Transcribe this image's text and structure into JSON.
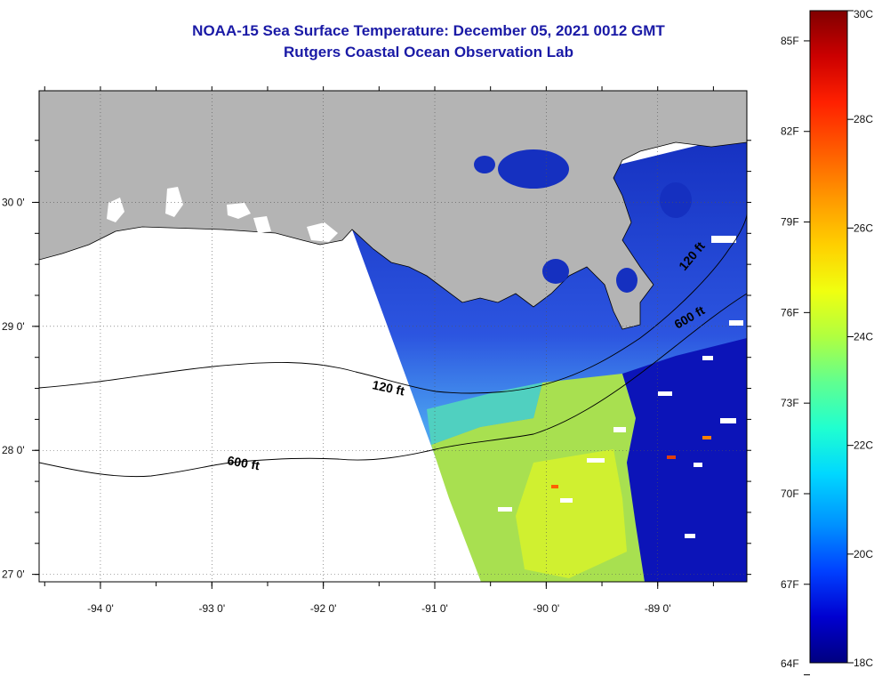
{
  "title": "NOAA-15 Sea Surface Temperature:  December 05, 2021 0012 GMT",
  "subtitle": "Rutgers Coastal Ocean Observation Lab",
  "lat_ticks": [
    {
      "value": 30,
      "label": "30 0'"
    },
    {
      "value": 29,
      "label": "29 0'"
    },
    {
      "value": 28,
      "label": "28 0'"
    },
    {
      "value": 27,
      "label": "27 0'"
    }
  ],
  "lon_ticks": [
    {
      "value": -94,
      "label": "-94 0'"
    },
    {
      "value": -93,
      "label": "-93 0'"
    },
    {
      "value": -92,
      "label": "-92 0'"
    },
    {
      "value": -91,
      "label": "-91 0'"
    },
    {
      "value": -90,
      "label": "-90 0'"
    },
    {
      "value": -89,
      "label": "-89 0'"
    }
  ],
  "extent": {
    "lon_min": -94.55,
    "lon_max": -88.2,
    "lat_min": 26.94,
    "lat_max": 30.9
  },
  "contour_labels": [
    "120 ft",
    "600 ft",
    "120 ft",
    "600 ft"
  ],
  "colorbar": {
    "celsius_labels": [
      "30C",
      "28C",
      "26C",
      "24C",
      "22C",
      "20C",
      "18C"
    ],
    "fahrenheit_labels": [
      "85F",
      "82F",
      "79F",
      "76F",
      "73F",
      "70F",
      "67F",
      "64F"
    ],
    "colors": [
      "#800000",
      "#cc0000",
      "#ff2000",
      "#ff6000",
      "#ff9a00",
      "#ffd000",
      "#f0ff10",
      "#b0ff40",
      "#60ff90",
      "#20ffd0",
      "#00d8ff",
      "#0090ff",
      "#0040ff",
      "#0000d0",
      "#000080"
    ]
  },
  "colors": {
    "land": "#b4b4b4",
    "no_data": "#ffffff",
    "title": "#1a1aa6"
  }
}
